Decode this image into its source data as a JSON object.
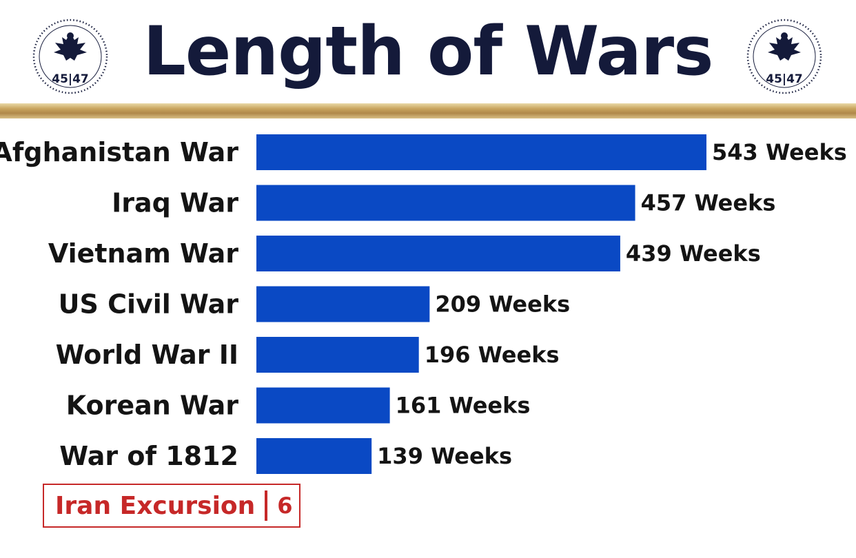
{
  "header": {
    "title": "Length of Wars",
    "seal_text": "45|47"
  },
  "colors": {
    "bar": "#0a49c4",
    "title": "#141a3a",
    "highlight": "#c62828",
    "gold": "#c9a55e"
  },
  "chart_data": {
    "type": "bar",
    "orientation": "horizontal",
    "categories": [
      "Afghanistan War",
      "Iraq War",
      "Vietnam War",
      "US Civil War",
      "World War II",
      "Korean War",
      "War of 1812"
    ],
    "values": [
      543,
      457,
      439,
      209,
      196,
      161,
      139
    ],
    "value_labels": [
      "543 Weeks",
      "457 Weeks",
      "439 Weeks",
      "209 Weeks",
      "196 Weeks",
      "161 Weeks",
      "139 Weeks"
    ],
    "title": "Length of Wars",
    "xlabel": "",
    "ylabel": "",
    "grid": false,
    "legend": "none"
  },
  "callout": {
    "label": "Iran Excursion",
    "value": "6"
  }
}
